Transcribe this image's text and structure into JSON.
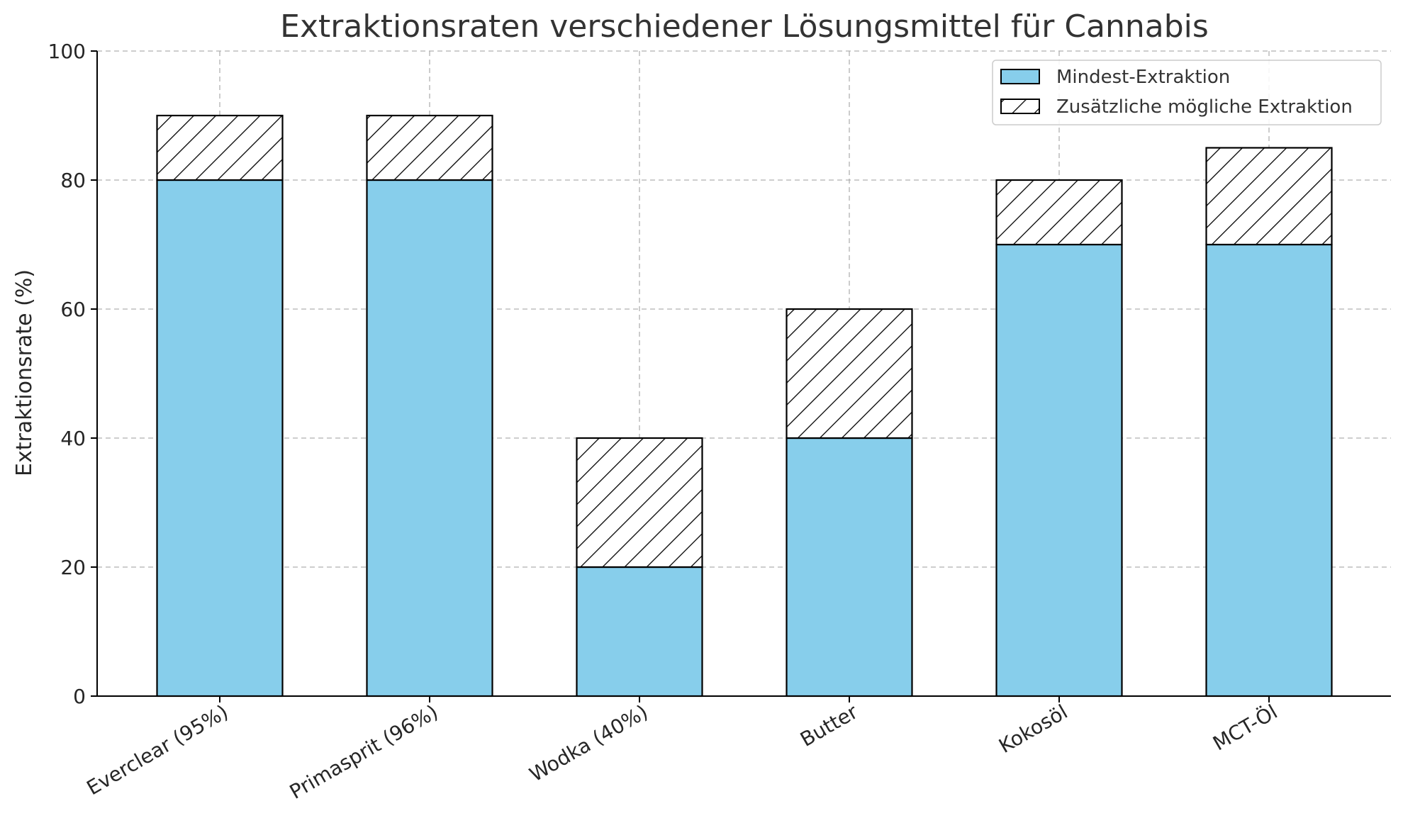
{
  "chart_data": {
    "type": "bar",
    "stacked": true,
    "title": "Extraktionsraten verschiedener Lösungsmittel für Cannabis",
    "xlabel": "",
    "ylabel": "Extraktionsrate (%)",
    "ylim": [
      0,
      100
    ],
    "yticks": [
      "0",
      "20",
      "40",
      "60",
      "80",
      "100"
    ],
    "categories": [
      "Everclear (95%)",
      "Primasprit (96%)",
      "Wodka (40%)",
      "Butter",
      "Kokosöl",
      "MCT-Öl"
    ],
    "series": [
      {
        "name": "Mindest-Extraktion",
        "values": [
          80,
          80,
          20,
          40,
          70,
          70
        ],
        "color": "#87ceeb",
        "pattern": "solid"
      },
      {
        "name": "Zusätzliche mögliche Extraktion",
        "values": [
          10,
          10,
          20,
          20,
          10,
          15
        ],
        "color": "#ffffff",
        "pattern": "diagonal-hatch"
      }
    ],
    "grid": true,
    "legend_position": "top-right"
  }
}
